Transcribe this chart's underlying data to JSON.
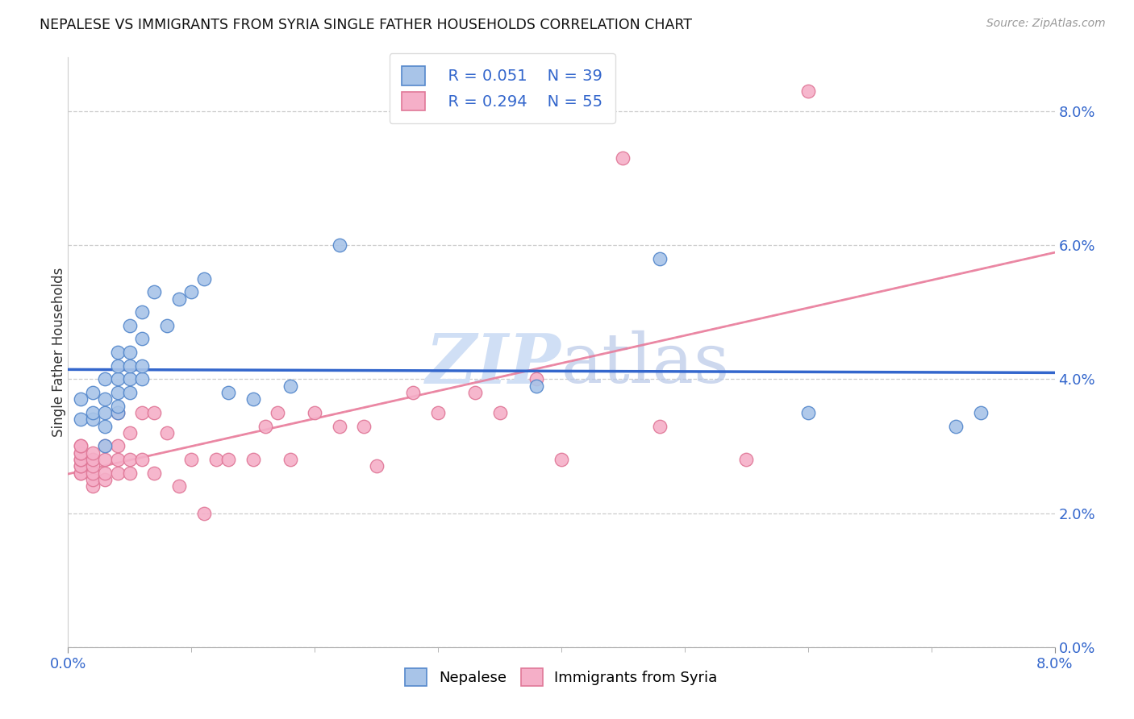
{
  "title": "NEPALESE VS IMMIGRANTS FROM SYRIA SINGLE FATHER HOUSEHOLDS CORRELATION CHART",
  "source": "Source: ZipAtlas.com",
  "ylabel": "Single Father Households",
  "xlim": [
    0.0,
    0.08
  ],
  "ylim": [
    0.0,
    0.088
  ],
  "xticks_show": [
    0.0,
    0.08
  ],
  "yticks": [
    0.0,
    0.02,
    0.04,
    0.06,
    0.08
  ],
  "yticks_minor": [
    0.01,
    0.03,
    0.05,
    0.07
  ],
  "legend_labels": [
    "Nepalese",
    "Immigrants from Syria"
  ],
  "nepalese_R": "R = 0.051",
  "nepalese_N": "N = 39",
  "syria_R": "R = 0.294",
  "syria_N": "N = 55",
  "nepalese_color": "#a8c4e8",
  "syria_color": "#f5afc8",
  "nepalese_edge_color": "#5588cc",
  "syria_edge_color": "#e07898",
  "nepalese_line_color": "#3366cc",
  "syria_line_color": "#e87898",
  "watermark_color": "#d0dff5",
  "nepalese_x": [
    0.001,
    0.001,
    0.002,
    0.002,
    0.002,
    0.003,
    0.003,
    0.003,
    0.003,
    0.003,
    0.004,
    0.004,
    0.004,
    0.004,
    0.004,
    0.004,
    0.005,
    0.005,
    0.005,
    0.005,
    0.005,
    0.006,
    0.006,
    0.006,
    0.006,
    0.007,
    0.008,
    0.009,
    0.01,
    0.011,
    0.013,
    0.015,
    0.018,
    0.022,
    0.038,
    0.048,
    0.06,
    0.072,
    0.074
  ],
  "nepalese_y": [
    0.034,
    0.037,
    0.034,
    0.035,
    0.038,
    0.03,
    0.033,
    0.035,
    0.037,
    0.04,
    0.035,
    0.036,
    0.038,
    0.04,
    0.042,
    0.044,
    0.038,
    0.04,
    0.042,
    0.044,
    0.048,
    0.04,
    0.042,
    0.046,
    0.05,
    0.053,
    0.048,
    0.052,
    0.053,
    0.055,
    0.038,
    0.037,
    0.039,
    0.06,
    0.039,
    0.058,
    0.035,
    0.033,
    0.035
  ],
  "syria_x": [
    0.001,
    0.001,
    0.001,
    0.001,
    0.001,
    0.001,
    0.001,
    0.001,
    0.001,
    0.001,
    0.002,
    0.002,
    0.002,
    0.002,
    0.002,
    0.002,
    0.003,
    0.003,
    0.003,
    0.003,
    0.004,
    0.004,
    0.004,
    0.004,
    0.005,
    0.005,
    0.005,
    0.006,
    0.006,
    0.007,
    0.007,
    0.008,
    0.009,
    0.01,
    0.011,
    0.012,
    0.013,
    0.015,
    0.016,
    0.017,
    0.018,
    0.02,
    0.022,
    0.024,
    0.025,
    0.028,
    0.03,
    0.033,
    0.035,
    0.038,
    0.04,
    0.045,
    0.048,
    0.055,
    0.06
  ],
  "syria_y": [
    0.026,
    0.026,
    0.027,
    0.027,
    0.028,
    0.028,
    0.029,
    0.029,
    0.03,
    0.03,
    0.024,
    0.025,
    0.026,
    0.027,
    0.028,
    0.029,
    0.025,
    0.026,
    0.028,
    0.03,
    0.026,
    0.028,
    0.03,
    0.035,
    0.026,
    0.028,
    0.032,
    0.028,
    0.035,
    0.026,
    0.035,
    0.032,
    0.024,
    0.028,
    0.02,
    0.028,
    0.028,
    0.028,
    0.033,
    0.035,
    0.028,
    0.035,
    0.033,
    0.033,
    0.027,
    0.038,
    0.035,
    0.038,
    0.035,
    0.04,
    0.028,
    0.073,
    0.033,
    0.028,
    0.083
  ]
}
